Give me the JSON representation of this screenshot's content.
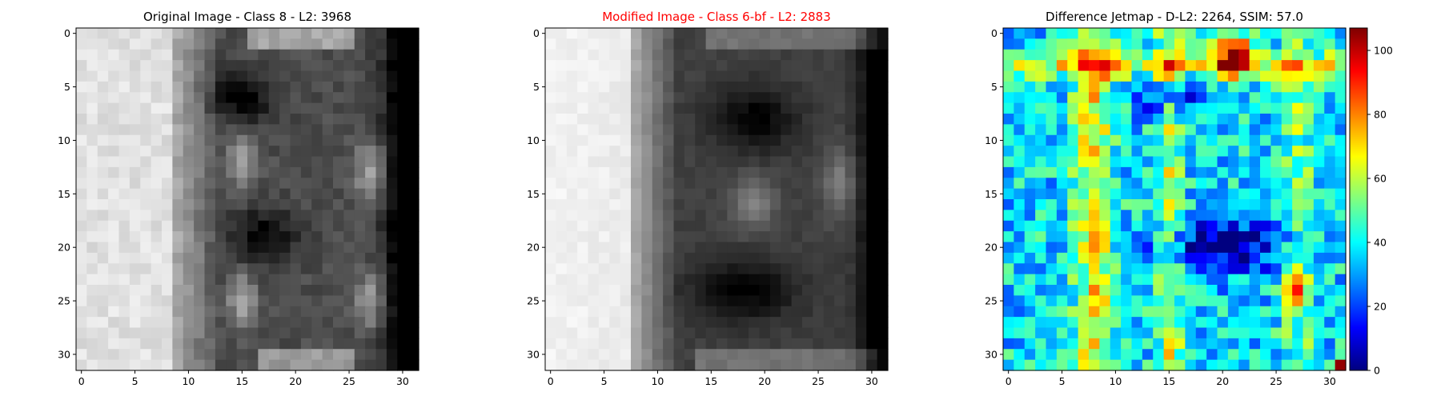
{
  "chart_data": [
    {
      "type": "heatmap",
      "title": "Original Image - Class 8 - L2: 3968",
      "title_color": "#000000",
      "colormap": "gray",
      "grid_size": 32,
      "x_ticks": [
        0,
        5,
        10,
        15,
        20,
        25,
        30
      ],
      "y_ticks": [
        0,
        5,
        10,
        15,
        20,
        25,
        30
      ],
      "xlim": [
        -0.5,
        31.5
      ],
      "ylim": [
        31.5,
        -0.5
      ],
      "grid": false,
      "description_shape": "digit-like dark strokes on light background"
    },
    {
      "type": "heatmap",
      "title": "Modified Image - Class 6-bf - L2: 2883",
      "title_color": "#ff0000",
      "colormap": "gray",
      "grid_size": 32,
      "x_ticks": [
        0,
        5,
        10,
        15,
        20,
        25,
        30
      ],
      "y_ticks": [
        0,
        5,
        10,
        15,
        20,
        25,
        30
      ],
      "xlim": [
        -0.5,
        31.5
      ],
      "ylim": [
        31.5,
        -0.5
      ],
      "grid": false
    },
    {
      "type": "heatmap",
      "title": "Difference Jetmap - D-L2: 2264, SSIM: 57.0",
      "title_color": "#000000",
      "colormap": "jet",
      "grid_size": 32,
      "x_ticks": [
        0,
        5,
        10,
        15,
        20,
        25,
        30
      ],
      "y_ticks": [
        0,
        5,
        10,
        15,
        20,
        25,
        30
      ],
      "xlim": [
        -0.5,
        31.5
      ],
      "ylim": [
        31.5,
        -0.5
      ],
      "grid": false,
      "colorbar": {
        "min": 0,
        "max": 107,
        "ticks": [
          0,
          20,
          40,
          60,
          80,
          100
        ],
        "placement": "right"
      }
    }
  ]
}
